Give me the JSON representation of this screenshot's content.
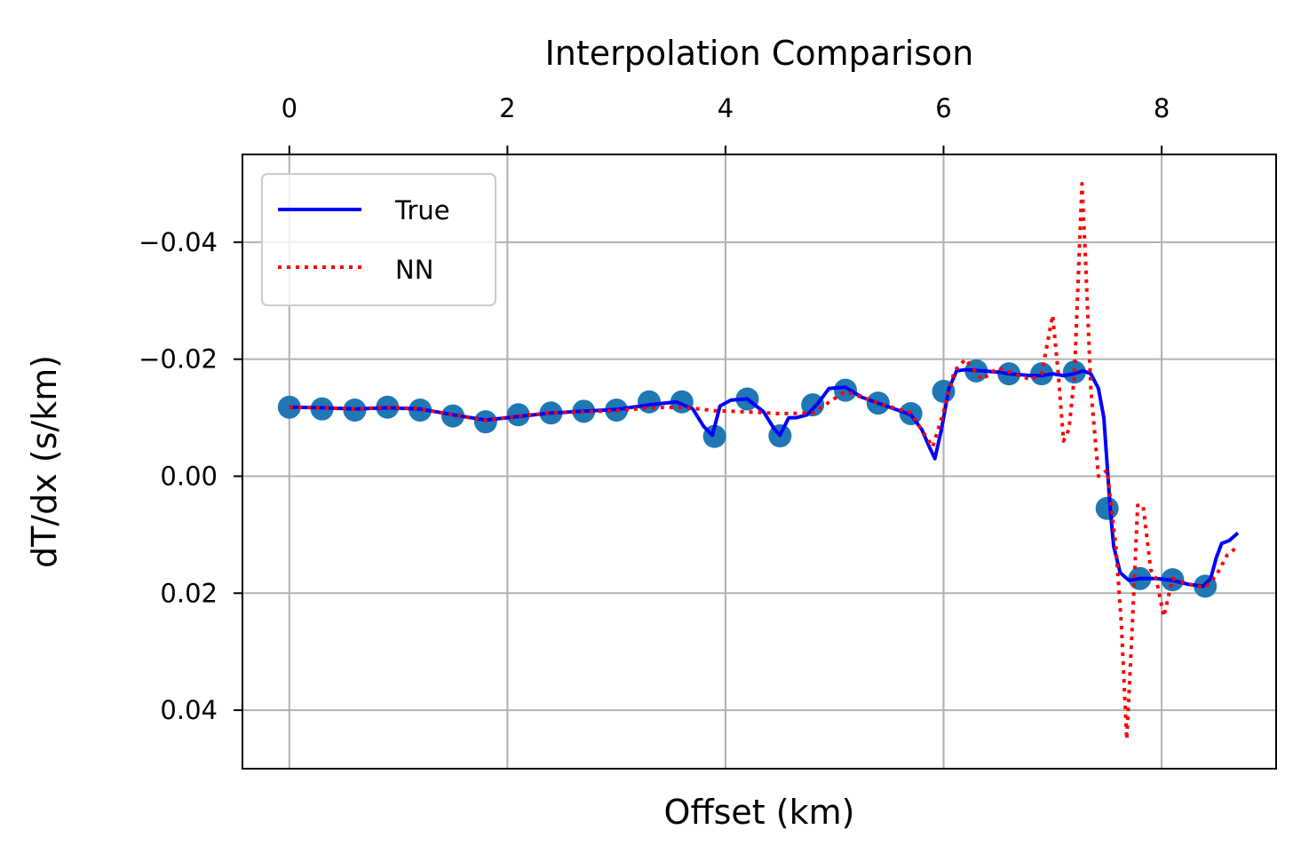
{
  "chart_data": {
    "type": "line",
    "title": "Interpolation Comparison",
    "xlabel": "Offset (km)",
    "ylabel": "dT/dx (s/km)",
    "xlim": [
      -0.43,
      9.05
    ],
    "ylim": [
      0.05,
      -0.055
    ],
    "y_inverted": true,
    "x_axis_position": "top",
    "grid": true,
    "legend_position": "top-left",
    "x_ticks": [
      0,
      2,
      4,
      6,
      8
    ],
    "x_tick_labels": [
      "0",
      "2",
      "4",
      "6",
      "8"
    ],
    "y_ticks": [
      -0.04,
      -0.02,
      0.0,
      0.02,
      0.04
    ],
    "y_tick_labels": [
      "−0.04",
      "−0.02",
      "0.00",
      "0.02",
      "0.04"
    ],
    "legend": [
      {
        "label": "True",
        "color": "#0000ff",
        "style": "solid"
      },
      {
        "label": "NN",
        "color": "#ff0000",
        "style": "dotted"
      }
    ],
    "samples": {
      "color": "#1f77b4",
      "x": [
        0.0,
        0.3,
        0.6,
        0.9,
        1.2,
        1.5,
        1.8,
        2.1,
        2.4,
        2.7,
        3.0,
        3.3,
        3.6,
        3.9,
        4.2,
        4.5,
        4.8,
        5.1,
        5.4,
        5.7,
        6.0,
        6.3,
        6.6,
        6.9,
        7.2,
        7.5,
        7.8,
        8.1,
        8.4
      ],
      "y": [
        -0.0118,
        -0.0115,
        -0.0113,
        -0.0118,
        -0.0113,
        -0.0103,
        -0.0093,
        -0.0105,
        -0.0108,
        -0.0111,
        -0.0113,
        -0.0127,
        -0.0127,
        -0.0068,
        -0.0132,
        -0.0069,
        -0.0122,
        -0.0147,
        -0.0125,
        -0.0107,
        -0.0145,
        -0.018,
        -0.0175,
        -0.0175,
        -0.0178,
        0.0055,
        0.0175,
        0.0177,
        0.0188
      ]
    },
    "series": [
      {
        "name": "True",
        "color": "#0000ff",
        "x": [
          0.0,
          0.3,
          0.6,
          0.9,
          1.2,
          1.5,
          1.8,
          2.1,
          2.4,
          2.7,
          3.0,
          3.3,
          3.55,
          3.7,
          3.8,
          3.88,
          3.95,
          4.05,
          4.2,
          4.35,
          4.45,
          4.5,
          4.58,
          4.65,
          4.75,
          4.85,
          4.95,
          5.1,
          5.25,
          5.4,
          5.55,
          5.7,
          5.8,
          5.87,
          5.92,
          5.98,
          6.05,
          6.12,
          6.2,
          6.35,
          6.5,
          6.6,
          6.8,
          6.9,
          7.0,
          7.1,
          7.2,
          7.28,
          7.35,
          7.42,
          7.47,
          7.5,
          7.53,
          7.56,
          7.62,
          7.7,
          7.8,
          7.95,
          8.1,
          8.25,
          8.38,
          8.45,
          8.5,
          8.55,
          8.62,
          8.7
        ],
        "y": [
          -0.0118,
          -0.0117,
          -0.0115,
          -0.0117,
          -0.0115,
          -0.0105,
          -0.0096,
          -0.0102,
          -0.0108,
          -0.0111,
          -0.0114,
          -0.0122,
          -0.0127,
          -0.0115,
          -0.0085,
          -0.007,
          -0.012,
          -0.013,
          -0.0132,
          -0.011,
          -0.008,
          -0.007,
          -0.01,
          -0.01,
          -0.0105,
          -0.0125,
          -0.015,
          -0.0152,
          -0.0135,
          -0.0125,
          -0.0115,
          -0.0105,
          -0.008,
          -0.005,
          -0.003,
          -0.008,
          -0.015,
          -0.018,
          -0.0182,
          -0.018,
          -0.0178,
          -0.0175,
          -0.0172,
          -0.0172,
          -0.0175,
          -0.0172,
          -0.0175,
          -0.018,
          -0.0175,
          -0.015,
          -0.01,
          -0.002,
          0.006,
          0.012,
          0.0165,
          0.0178,
          0.0175,
          0.0175,
          0.0178,
          0.0185,
          0.0188,
          0.0175,
          0.014,
          0.0115,
          0.011,
          0.0097
        ]
      },
      {
        "name": "NN",
        "color": "#ff0000",
        "x": [
          0.0,
          0.3,
          0.6,
          0.9,
          1.2,
          1.5,
          1.8,
          2.1,
          2.4,
          2.7,
          3.0,
          3.3,
          3.6,
          3.9,
          4.2,
          4.5,
          4.8,
          5.1,
          5.4,
          5.7,
          5.9,
          6.0,
          6.1,
          6.2,
          6.35,
          6.5,
          6.65,
          6.8,
          6.9,
          7.0,
          7.05,
          7.1,
          7.15,
          7.2,
          7.27,
          7.3,
          7.35,
          7.42,
          7.5,
          7.58,
          7.63,
          7.68,
          7.73,
          7.78,
          7.83,
          7.9,
          7.95,
          8.02,
          8.1,
          8.25,
          8.4,
          8.5,
          8.6,
          8.7
        ],
        "y": [
          -0.0118,
          -0.0117,
          -0.0115,
          -0.0118,
          -0.0115,
          -0.0105,
          -0.0095,
          -0.0103,
          -0.0108,
          -0.011,
          -0.0112,
          -0.0117,
          -0.0118,
          -0.0112,
          -0.011,
          -0.0107,
          -0.0108,
          -0.0145,
          -0.0125,
          -0.0108,
          -0.005,
          -0.011,
          -0.018,
          -0.02,
          -0.0165,
          -0.0185,
          -0.0175,
          -0.0165,
          -0.0175,
          -0.0275,
          -0.018,
          -0.006,
          -0.008,
          -0.017,
          -0.05,
          -0.038,
          -0.015,
          0.0,
          -0.001,
          0.012,
          0.025,
          0.045,
          0.026,
          0.005,
          0.005,
          0.016,
          0.0175,
          0.024,
          0.0175,
          0.0185,
          0.019,
          0.017,
          0.0135,
          0.012
        ]
      }
    ]
  }
}
